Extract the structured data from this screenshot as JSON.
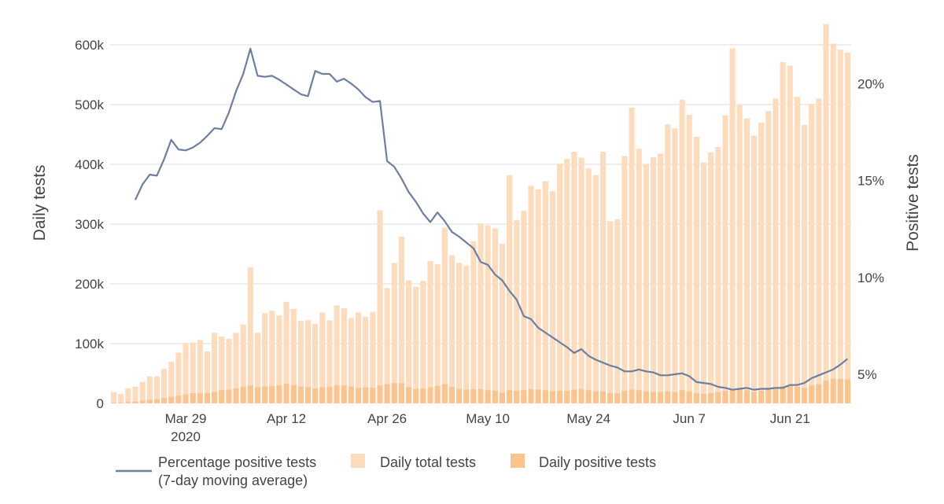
{
  "chart_data": {
    "type": "bar+line",
    "title": "",
    "xlabel": "",
    "ylabel": "Daily tests",
    "y2label": "Positive tests",
    "ylim": [
      0,
      600000
    ],
    "y2lim": [
      3.5,
      22
    ],
    "grid": true,
    "legend_position": "bottom",
    "start_date": "2020-03-19",
    "x_ticks": [
      {
        "day": 10,
        "label": "Mar 29",
        "sublabel": "2020"
      },
      {
        "day": 24,
        "label": "Apr 12",
        "sublabel": ""
      },
      {
        "day": 38,
        "label": "Apr 26",
        "sublabel": ""
      },
      {
        "day": 52,
        "label": "May 10",
        "sublabel": ""
      },
      {
        "day": 66,
        "label": "May 24",
        "sublabel": ""
      },
      {
        "day": 80,
        "label": "Jun 7",
        "sublabel": ""
      },
      {
        "day": 94,
        "label": "Jun 21",
        "sublabel": ""
      }
    ],
    "y_ticks": [
      {
        "value": 0,
        "label": "0"
      },
      {
        "value": 100000,
        "label": "100k"
      },
      {
        "value": 200000,
        "label": "200k"
      },
      {
        "value": 300000,
        "label": "300k"
      },
      {
        "value": 400000,
        "label": "400k"
      },
      {
        "value": 500000,
        "label": "500k"
      },
      {
        "value": 600000,
        "label": "600k"
      }
    ],
    "y2_ticks": [
      {
        "value": 5,
        "label": "5%"
      },
      {
        "value": 10,
        "label": "10%"
      },
      {
        "value": 15,
        "label": "15%"
      },
      {
        "value": 20,
        "label": "20%"
      }
    ],
    "series": [
      {
        "name": "Daily total tests",
        "kind": "bar",
        "axis": "left",
        "color": "#fddcbd",
        "values": [
          19000,
          16000,
          25000,
          28000,
          36000,
          45000,
          45000,
          58000,
          70000,
          85000,
          101000,
          102000,
          106000,
          87000,
          118000,
          112000,
          108000,
          118000,
          132000,
          228000,
          118000,
          151000,
          155000,
          147000,
          170000,
          158000,
          138000,
          139000,
          133000,
          152000,
          139000,
          164000,
          159000,
          143000,
          152000,
          145000,
          153000,
          323000,
          193000,
          235000,
          279000,
          206000,
          195000,
          205000,
          238000,
          233000,
          294000,
          248000,
          235000,
          230000,
          271000,
          301000,
          298000,
          293000,
          267000,
          382000,
          307000,
          322000,
          364000,
          358000,
          372000,
          355000,
          401000,
          409000,
          421000,
          411000,
          393000,
          382000,
          421000,
          305000,
          308000,
          414000,
          495000,
          426000,
          400000,
          412000,
          418000,
          467000,
          460000,
          508000,
          483000,
          446000,
          403000,
          420000,
          429000,
          482000,
          594000,
          499000,
          477000,
          448000,
          470000,
          489000,
          510000,
          571000,
          565000,
          513000,
          466000,
          501000,
          510000,
          635000,
          602000,
          592000,
          587000
        ]
      },
      {
        "name": "Daily positive tests",
        "kind": "bar",
        "axis": "left",
        "color": "#fbc48e",
        "values": [
          1000,
          1000,
          2500,
          3000,
          4500,
          6000,
          7000,
          9000,
          11000,
          13000,
          15000,
          17000,
          17000,
          17500,
          19000,
          22000,
          23000,
          25000,
          28000,
          30000,
          27000,
          28000,
          29000,
          30000,
          33000,
          31000,
          28000,
          27000,
          25000,
          27000,
          28000,
          30000,
          30000,
          28000,
          26000,
          27000,
          26000,
          30000,
          32000,
          34000,
          34000,
          27000,
          24000,
          25000,
          27000,
          29000,
          32000,
          28000,
          24000,
          23000,
          24000,
          24000,
          22000,
          21000,
          18000,
          22000,
          21000,
          22000,
          24000,
          23000,
          22000,
          20000,
          21000,
          21000,
          23000,
          24000,
          22000,
          20000,
          20000,
          17000,
          17000,
          21000,
          23000,
          22000,
          20000,
          19000,
          19000,
          20000,
          19000,
          22000,
          20000,
          17000,
          16000,
          17000,
          19000,
          21000,
          24000,
          23000,
          22000,
          19000,
          21000,
          23000,
          25000,
          29000,
          30000,
          28000,
          26000,
          30000,
          32000,
          38000,
          41000,
          41000,
          40000
        ]
      },
      {
        "name": "Percentage positive tests\n(7-day moving average)",
        "kind": "line",
        "axis": "right",
        "color": "#6d7fa1",
        "values": [
          null,
          null,
          null,
          14.0,
          14.8,
          15.3,
          15.25,
          16.1,
          17.1,
          16.6,
          16.55,
          16.7,
          16.95,
          17.3,
          17.7,
          17.65,
          18.5,
          19.6,
          20.5,
          21.8,
          20.4,
          20.35,
          20.4,
          20.2,
          19.95,
          19.7,
          19.45,
          19.35,
          20.65,
          20.5,
          20.5,
          20.1,
          20.25,
          20.0,
          19.7,
          19.3,
          19.05,
          19.1,
          16.0,
          15.7,
          15.1,
          14.4,
          13.9,
          13.3,
          12.85,
          13.35,
          12.9,
          12.35,
          12.1,
          11.8,
          11.5,
          10.8,
          10.65,
          10.15,
          9.85,
          9.3,
          8.85,
          8.0,
          7.85,
          7.4,
          7.15,
          6.9,
          6.65,
          6.4,
          6.1,
          6.3,
          5.95,
          5.75,
          5.6,
          5.45,
          5.35,
          5.15,
          5.15,
          5.25,
          5.15,
          5.1,
          4.95,
          4.95,
          5.0,
          5.05,
          4.9,
          4.6,
          4.55,
          4.5,
          4.35,
          4.3,
          4.2,
          4.25,
          4.3,
          4.2,
          4.25,
          4.25,
          4.3,
          4.3,
          4.45,
          4.45,
          4.55,
          4.8,
          4.95,
          5.1,
          5.25,
          5.5,
          5.8
        ]
      }
    ]
  }
}
